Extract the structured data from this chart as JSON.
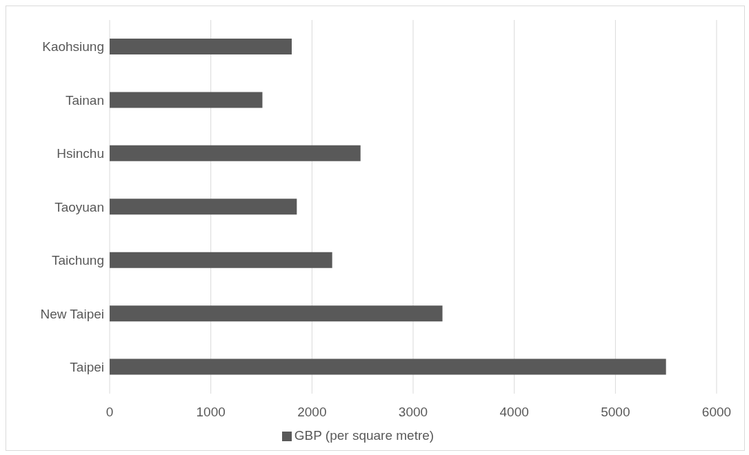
{
  "chart_data": {
    "type": "bar",
    "orientation": "horizontal",
    "categories": [
      "Kaohsiung",
      "Tainan",
      "Hsinchu",
      "Taoyuan",
      "Taichung",
      "New Taipei",
      "Taipei"
    ],
    "series": [
      {
        "name": "GBP (per square metre)",
        "color": "#595959",
        "values": [
          1800,
          1510,
          2480,
          1850,
          2200,
          3290,
          5500
        ]
      }
    ],
    "xlim": [
      0,
      6000
    ],
    "xticks": [
      0,
      1000,
      2000,
      3000,
      4000,
      5000,
      6000
    ],
    "grid": "x",
    "legend": "bottom"
  }
}
